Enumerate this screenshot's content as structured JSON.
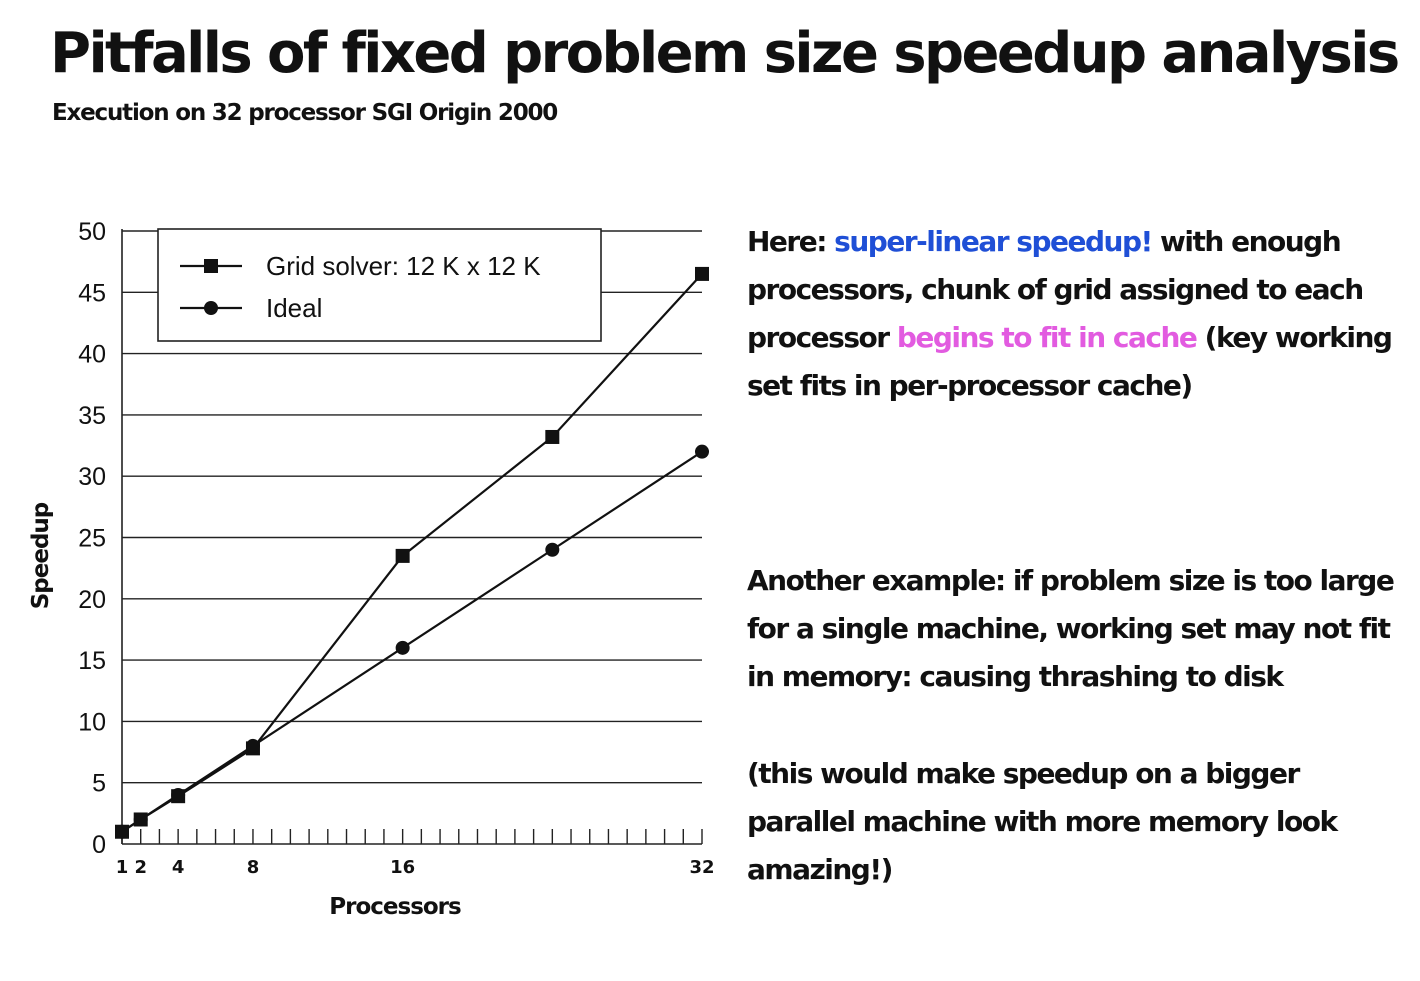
{
  "title": "Pitfalls of fixed problem size speedup analysis",
  "subtitle": "Execution on 32 processor SGI Origin 2000",
  "chart_data": {
    "type": "line",
    "xlabel": "Processors",
    "ylabel": "Speedup",
    "xlim": [
      1,
      32
    ],
    "ylim": [
      0,
      50
    ],
    "x_ticks": [
      1,
      2,
      4,
      8,
      16,
      32
    ],
    "y_ticks": [
      0,
      5,
      10,
      15,
      20,
      25,
      30,
      35,
      40,
      45,
      50
    ],
    "grid": "horizontal",
    "legend_position": "top-left",
    "series": [
      {
        "name": "Grid solver: 12 K x 12 K",
        "marker": "square",
        "x": [
          1,
          2,
          4,
          8,
          16,
          24,
          32
        ],
        "y": [
          1,
          2,
          3.9,
          7.8,
          23.5,
          33.2,
          46.5
        ]
      },
      {
        "name": "Ideal",
        "marker": "circle",
        "x": [
          1,
          2,
          4,
          8,
          16,
          24,
          32
        ],
        "y": [
          1,
          2,
          4,
          8,
          16,
          24,
          32
        ]
      }
    ]
  },
  "notes": {
    "note1": {
      "prefix": "Here: ",
      "highlight1": "super-linear speedup!",
      "middle": " with enough processors, chunk of grid assigned to each processor ",
      "highlight2": "begins to fit in cache",
      "suffix": " (key working set fits in per-processor cache)"
    },
    "note2": "Another example: if problem size is too large for a single machine, working set may not fit in memory: causing thrashing to disk",
    "note3": "(this would make speedup on a bigger parallel machine with more memory look amazing!)"
  },
  "colors": {
    "highlight_blue": "#1f4fd6",
    "highlight_pink": "#e25be0"
  }
}
